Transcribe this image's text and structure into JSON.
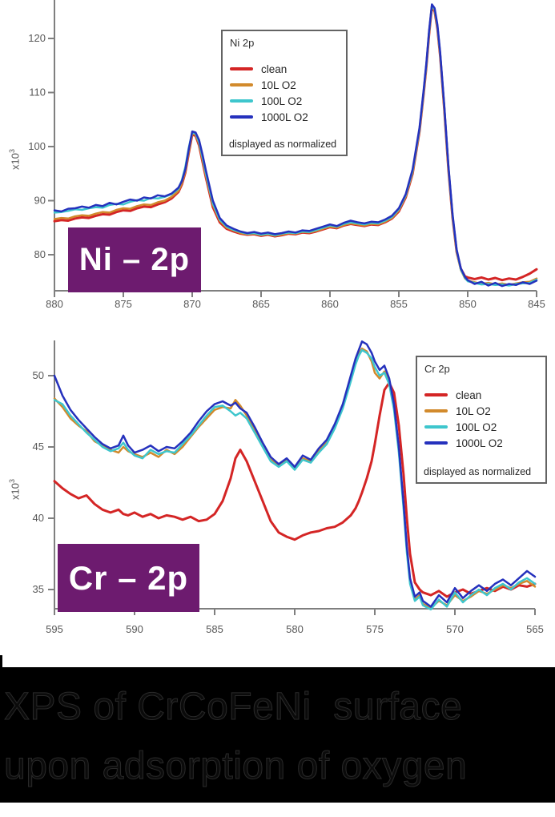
{
  "caption": {
    "line1": "XPS of CrCoFeNi  surface",
    "line2": "upon adsorption of oxygen",
    "background": "#000000",
    "text_color": "#0b0b0b",
    "outline_color": "#2a2a2a"
  },
  "accent_colors": {
    "badge_purple": "#6d1b6f",
    "axis_gray": "#7f7f7f"
  },
  "chart_data": [
    {
      "id": "ni",
      "type": "line",
      "title": "Ni 2p",
      "badge_label": "Ni – 2p",
      "legend_note": "displayed as normalized",
      "legend_position": "upper-center",
      "y_unit_label": "x10",
      "y_unit_exponent": "3",
      "x_axis_reversed": true,
      "xlim": [
        880,
        845
      ],
      "ylim": [
        73.5,
        127
      ],
      "x_ticks": [
        880,
        875,
        870,
        865,
        860,
        855,
        850,
        845
      ],
      "y_ticks": [
        80,
        90,
        100,
        110,
        120
      ],
      "grid": false,
      "x": [
        880,
        879.5,
        879,
        878.5,
        878,
        877.5,
        877,
        876.5,
        876,
        875.5,
        875,
        874.5,
        874,
        873.5,
        873,
        872.5,
        872,
        871.5,
        871,
        870.75,
        870.5,
        870.25,
        870,
        869.75,
        869.5,
        869.25,
        869,
        868.5,
        868,
        867.5,
        867,
        866.5,
        866,
        865.5,
        865,
        864.5,
        864,
        863.5,
        863,
        862.5,
        862,
        861.5,
        861,
        860.5,
        860,
        859.5,
        859,
        858.5,
        858,
        857.5,
        857,
        856.5,
        856,
        855.5,
        855,
        854.5,
        854,
        853.5,
        853.2,
        853,
        852.8,
        852.6,
        852.4,
        852.2,
        852,
        851.7,
        851.4,
        851.1,
        850.8,
        850.5,
        850.2,
        850,
        849.5,
        849,
        848.5,
        848,
        847.5,
        847,
        846.5,
        846,
        845.5,
        845
      ],
      "series": [
        {
          "name": "clean",
          "color": "#d42525",
          "width": 3,
          "values": [
            86.2,
            86.4,
            86.3,
            86.7,
            86.9,
            86.8,
            87.2,
            87.5,
            87.4,
            87.9,
            88.2,
            88.1,
            88.6,
            88.9,
            88.8,
            89.3,
            89.7,
            90.4,
            91.6,
            93.0,
            95.2,
            98.8,
            102.2,
            102.0,
            100.2,
            97.2,
            94.2,
            88.8,
            86.0,
            84.8,
            84.3,
            83.9,
            83.7,
            83.8,
            83.5,
            83.7,
            83.4,
            83.6,
            83.9,
            83.8,
            84.1,
            84.0,
            84.3,
            84.7,
            85.1,
            84.9,
            85.4,
            85.7,
            85.5,
            85.3,
            85.6,
            85.5,
            86.0,
            86.7,
            88.0,
            90.6,
            95.0,
            102.8,
            109.8,
            114.8,
            120.8,
            125.8,
            125.0,
            121.8,
            116.8,
            106.8,
            95.8,
            86.8,
            80.5,
            77.4,
            76.0,
            75.8,
            75.5,
            75.8,
            75.4,
            75.7,
            75.3,
            75.6,
            75.4,
            75.9,
            76.5,
            77.3
          ]
        },
        {
          "name": "10L O2",
          "color": "#d28a2c",
          "width": 2.5,
          "values": [
            86.6,
            86.8,
            86.7,
            87.1,
            87.3,
            87.2,
            87.6,
            87.9,
            87.8,
            88.3,
            88.6,
            88.5,
            89.0,
            89.3,
            89.2,
            89.7,
            90.0,
            90.7,
            91.8,
            93.2,
            95.4,
            99.0,
            102.4,
            102.2,
            100.5,
            97.6,
            94.6,
            89.2,
            86.3,
            85.0,
            84.5,
            84.0,
            83.8,
            83.9,
            83.6,
            83.8,
            83.5,
            83.7,
            84.0,
            83.9,
            84.2,
            84.1,
            84.4,
            84.8,
            85.2,
            85.0,
            85.5,
            85.8,
            85.6,
            85.4,
            85.7,
            85.6,
            86.1,
            86.8,
            88.2,
            90.8,
            95.2,
            103.0,
            110.0,
            115.0,
            121.0,
            125.9,
            125.2,
            122.0,
            117.0,
            107.0,
            96.0,
            87.0,
            80.6,
            77.2,
            75.6,
            75.2,
            74.9,
            74.6,
            74.8,
            74.5,
            74.7,
            74.4,
            74.7,
            74.9,
            75.0,
            75.6
          ]
        },
        {
          "name": "100L O2",
          "color": "#3ec6cd",
          "width": 2.5,
          "values": [
            87.8,
            87.9,
            88.1,
            88.4,
            88.3,
            88.6,
            88.8,
            88.7,
            89.2,
            89.4,
            89.3,
            89.8,
            90.1,
            90.0,
            90.5,
            90.4,
            90.7,
            91.2,
            92.2,
            93.8,
            96.2,
            99.8,
            102.6,
            102.4,
            100.8,
            98.0,
            95.0,
            89.5,
            86.5,
            85.2,
            84.6,
            84.2,
            83.9,
            84.0,
            83.7,
            83.9,
            83.6,
            83.9,
            84.1,
            84.0,
            84.3,
            84.2,
            84.6,
            85.0,
            85.4,
            85.2,
            85.7,
            86.0,
            85.8,
            85.6,
            85.9,
            85.8,
            86.3,
            87.0,
            88.4,
            91.0,
            95.5,
            103.2,
            110.2,
            115.2,
            121.2,
            126.1,
            125.4,
            122.2,
            117.2,
            107.2,
            96.2,
            87.2,
            80.8,
            77.3,
            75.7,
            75.1,
            74.8,
            74.5,
            74.6,
            74.4,
            74.5,
            74.3,
            74.6,
            74.7,
            74.8,
            75.4
          ]
        },
        {
          "name": "1000L O2",
          "color": "#2531bd",
          "width": 2.5,
          "values": [
            88.2,
            88.0,
            88.5,
            88.6,
            88.9,
            88.7,
            89.2,
            89.0,
            89.6,
            89.3,
            89.8,
            90.2,
            90.0,
            90.6,
            90.4,
            91.0,
            90.8,
            91.3,
            92.4,
            93.6,
            95.8,
            99.5,
            102.8,
            102.6,
            101.2,
            98.5,
            95.5,
            90.0,
            86.8,
            85.4,
            84.8,
            84.3,
            84.0,
            84.2,
            83.9,
            84.1,
            83.8,
            84.0,
            84.3,
            84.1,
            84.5,
            84.4,
            84.8,
            85.2,
            85.6,
            85.3,
            85.9,
            86.3,
            86.0,
            85.8,
            86.1,
            86.0,
            86.5,
            87.2,
            88.6,
            91.2,
            95.8,
            103.5,
            110.5,
            115.5,
            121.5,
            126.3,
            125.6,
            122.5,
            117.5,
            107.5,
            96.5,
            87.5,
            81.0,
            77.5,
            75.9,
            75.3,
            74.6,
            75.0,
            74.3,
            74.8,
            74.2,
            74.6,
            74.4,
            74.9,
            74.6,
            75.2
          ]
        }
      ]
    },
    {
      "id": "cr",
      "type": "line",
      "title": "Cr 2p",
      "badge_label": "Cr – 2p",
      "legend_note": "displayed as normalized",
      "legend_position": "upper-right",
      "y_unit_label": "x10",
      "y_unit_exponent": "3",
      "x_axis_reversed": true,
      "xlim": [
        595,
        565
      ],
      "ylim": [
        33.6,
        52.8
      ],
      "x_ticks": [
        595,
        590,
        585,
        580,
        575,
        570,
        565
      ],
      "y_ticks": [
        35,
        40,
        45,
        50
      ],
      "grid": false,
      "x": [
        595,
        594.5,
        594,
        593.5,
        593,
        592.5,
        592,
        591.5,
        591,
        590.7,
        590.4,
        590,
        589.5,
        589,
        588.5,
        588,
        587.5,
        587,
        586.5,
        586,
        585.5,
        585,
        584.5,
        584,
        583.7,
        583.4,
        583,
        582.5,
        582,
        581.5,
        581,
        580.5,
        580,
        579.5,
        579,
        578.5,
        578,
        577.5,
        577,
        576.5,
        576.2,
        576,
        575.8,
        575.5,
        575.2,
        575,
        574.7,
        574.4,
        574.1,
        573.8,
        573.5,
        573.2,
        573,
        572.8,
        572.5,
        572.2,
        572,
        571.5,
        571,
        570.5,
        570,
        569.5,
        569,
        568.5,
        568,
        567.5,
        567,
        566.5,
        566,
        565.5,
        565
      ],
      "series": [
        {
          "name": "clean",
          "color": "#d42525",
          "width": 3,
          "values": [
            42.6,
            42.1,
            41.7,
            41.4,
            41.6,
            41.0,
            40.6,
            40.4,
            40.6,
            40.3,
            40.2,
            40.4,
            40.1,
            40.3,
            40.0,
            40.2,
            40.1,
            39.9,
            40.1,
            39.8,
            39.9,
            40.3,
            41.2,
            42.8,
            44.2,
            44.8,
            44.0,
            42.6,
            41.2,
            39.8,
            39.0,
            38.7,
            38.5,
            38.8,
            39.0,
            39.1,
            39.3,
            39.4,
            39.7,
            40.2,
            40.7,
            41.2,
            41.8,
            42.8,
            44.0,
            45.2,
            47.2,
            49.0,
            49.5,
            48.8,
            46.5,
            43.0,
            40.0,
            37.5,
            35.5,
            35.0,
            34.8,
            34.6,
            34.9,
            34.5,
            34.8,
            35.0,
            34.7,
            34.9,
            35.1,
            34.9,
            35.2,
            35.0,
            35.3,
            35.2,
            35.4
          ]
        },
        {
          "name": "10L O2",
          "color": "#d28a2c",
          "width": 2.5,
          "values": [
            48.4,
            47.8,
            47.0,
            46.5,
            46.1,
            45.4,
            45.1,
            44.8,
            44.6,
            45.0,
            44.7,
            44.5,
            44.3,
            44.6,
            44.3,
            44.8,
            44.5,
            45.0,
            45.7,
            46.4,
            47.0,
            47.6,
            47.8,
            47.7,
            48.3,
            47.9,
            47.2,
            46.2,
            45.1,
            44.1,
            43.7,
            44.1,
            43.5,
            44.2,
            44.0,
            44.7,
            45.3,
            46.4,
            47.8,
            49.7,
            50.9,
            51.5,
            51.9,
            51.7,
            51.0,
            50.2,
            49.8,
            50.3,
            49.6,
            47.8,
            44.8,
            40.8,
            37.8,
            35.6,
            34.3,
            34.6,
            34.0,
            33.7,
            34.2,
            33.9,
            34.6,
            34.2,
            34.5,
            34.9,
            34.7,
            35.0,
            35.3,
            35.1,
            35.4,
            35.6,
            35.2
          ]
        },
        {
          "name": "100L O2",
          "color": "#3ec6cd",
          "width": 2.5,
          "values": [
            48.3,
            48.0,
            47.2,
            46.6,
            46.0,
            45.5,
            45.0,
            44.7,
            44.9,
            45.3,
            44.8,
            44.4,
            44.2,
            44.8,
            44.5,
            44.7,
            44.6,
            45.2,
            45.8,
            46.5,
            47.2,
            47.8,
            47.9,
            47.5,
            47.2,
            47.4,
            47.0,
            46.0,
            45.0,
            44.0,
            43.6,
            44.0,
            43.4,
            44.1,
            43.9,
            44.6,
            45.2,
            46.3,
            47.7,
            49.6,
            50.8,
            51.4,
            51.8,
            51.6,
            51.2,
            50.6,
            50.0,
            50.2,
            49.4,
            47.6,
            44.6,
            40.6,
            37.6,
            35.4,
            34.2,
            34.5,
            33.9,
            33.6,
            34.3,
            33.8,
            34.8,
            34.1,
            34.6,
            35.0,
            34.6,
            35.1,
            35.4,
            35.0,
            35.5,
            35.8,
            35.4
          ]
        },
        {
          "name": "1000L O2",
          "color": "#2531bd",
          "width": 2.5,
          "values": [
            50.0,
            48.6,
            47.6,
            46.9,
            46.3,
            45.7,
            45.2,
            44.9,
            45.1,
            45.8,
            45.1,
            44.6,
            44.8,
            45.1,
            44.7,
            45.0,
            44.9,
            45.4,
            46.0,
            46.8,
            47.5,
            48.0,
            48.2,
            47.9,
            48.1,
            47.7,
            47.4,
            46.4,
            45.3,
            44.3,
            43.8,
            44.2,
            43.6,
            44.4,
            44.1,
            44.9,
            45.5,
            46.6,
            48.0,
            50.0,
            51.2,
            51.8,
            52.4,
            52.2,
            51.6,
            51.0,
            50.4,
            50.7,
            49.8,
            48.0,
            45.0,
            41.0,
            38.0,
            35.8,
            34.5,
            34.8,
            34.2,
            33.8,
            34.6,
            34.1,
            35.1,
            34.4,
            34.9,
            35.3,
            34.9,
            35.4,
            35.7,
            35.3,
            35.8,
            36.3,
            35.9
          ]
        }
      ]
    }
  ]
}
